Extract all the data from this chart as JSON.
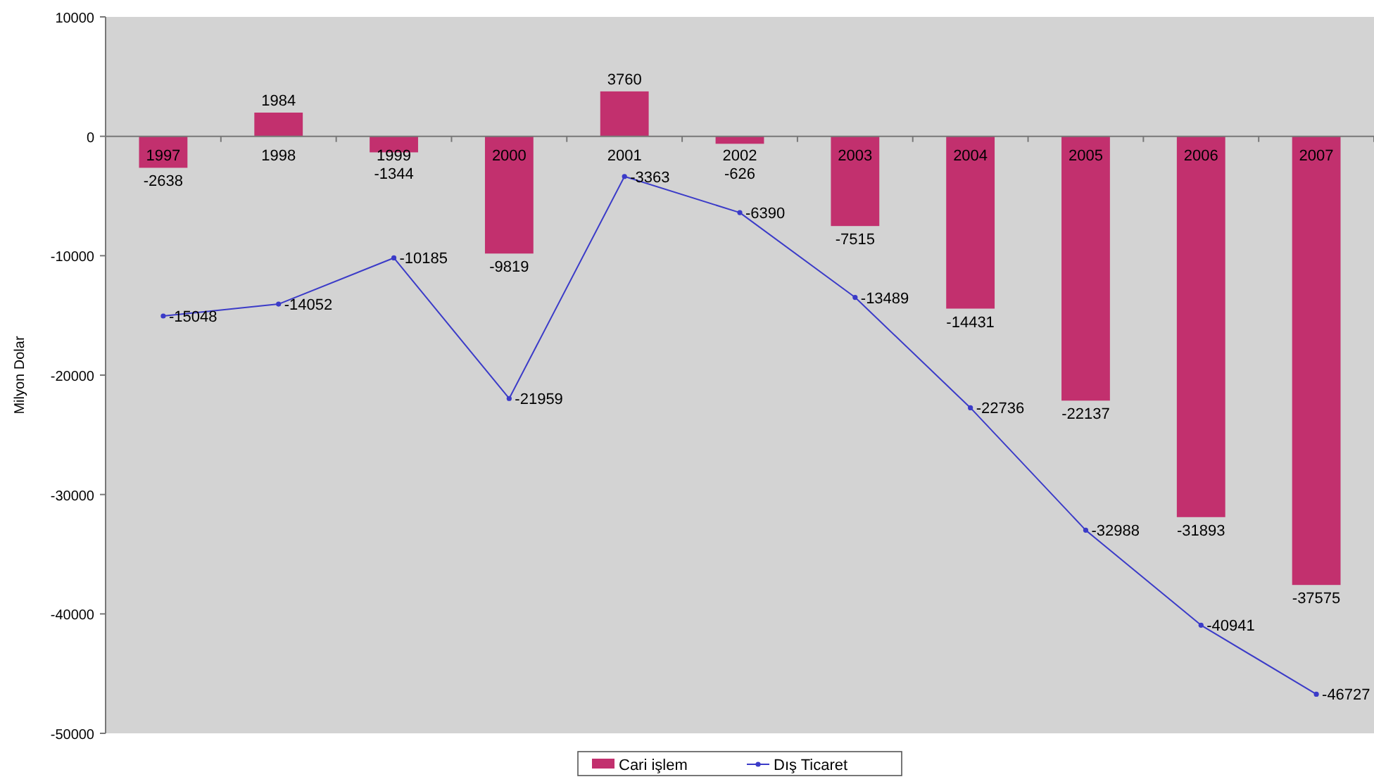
{
  "chart_data": {
    "type": "bar",
    "ylabel": "Milyon Dolar",
    "categories": [
      "1997",
      "1998",
      "1999",
      "2000",
      "2001",
      "2002",
      "2003",
      "2004",
      "2005",
      "2006",
      "2007"
    ],
    "series": [
      {
        "name": "Cari işlem",
        "color": "#c2306e",
        "values": [
          -2638,
          1984,
          -1344,
          -9819,
          3760,
          -626,
          -7515,
          -14431,
          -22137,
          -31893,
          -37575
        ]
      },
      {
        "name": "Dış Ticaret",
        "type": "line",
        "color": "#3b3bc8",
        "values": [
          -15048,
          -14052,
          -10185,
          -21959,
          -3363,
          -6390,
          -13489,
          -22736,
          -32988,
          -40941,
          -46727
        ]
      }
    ],
    "ylim": [
      -50000,
      10000
    ],
    "yticks": [
      10000,
      0,
      -10000,
      -20000,
      -30000,
      -40000,
      -50000
    ],
    "grid": false,
    "legend": "bottom",
    "marker": "circle",
    "line_style": "solid",
    "data_labels": true
  }
}
